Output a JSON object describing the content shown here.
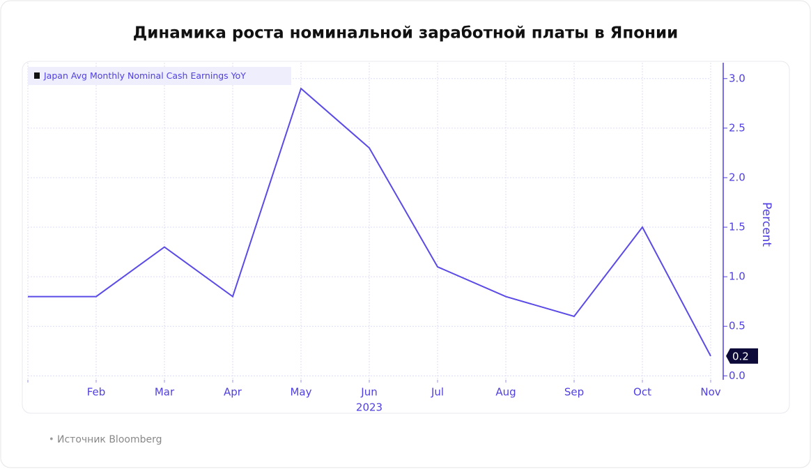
{
  "chart_data": {
    "type": "line",
    "title": "Динамика роста номинальной заработной платы в Японии",
    "categories": [
      null,
      "Feb",
      "Mar",
      "Apr",
      "May",
      "Jun",
      "Jul",
      "Aug",
      "Sep",
      "Oct",
      "Nov"
    ],
    "xlabel": "2023",
    "ylabel": "Percent",
    "series": [
      {
        "name": "Japan Avg Monthly Nominal Cash Earnings YoY",
        "color": "#5a4ae6",
        "values": [
          0.8,
          0.8,
          1.3,
          0.8,
          2.9,
          2.3,
          1.1,
          0.8,
          0.6,
          1.5,
          0.2
        ]
      }
    ],
    "ylim": [
      -0.04,
      3.16
    ],
    "yticks": [
      {
        "value": 0,
        "label": "0.0"
      },
      0.5,
      {
        "value": 1,
        "label": "1.0"
      },
      1.5,
      {
        "value": 2,
        "label": "2.0"
      },
      2.5,
      {
        "value": 3,
        "label": "3.0"
      }
    ],
    "grid": true,
    "legend": "top-left",
    "source": "Источник Bloomberg"
  }
}
